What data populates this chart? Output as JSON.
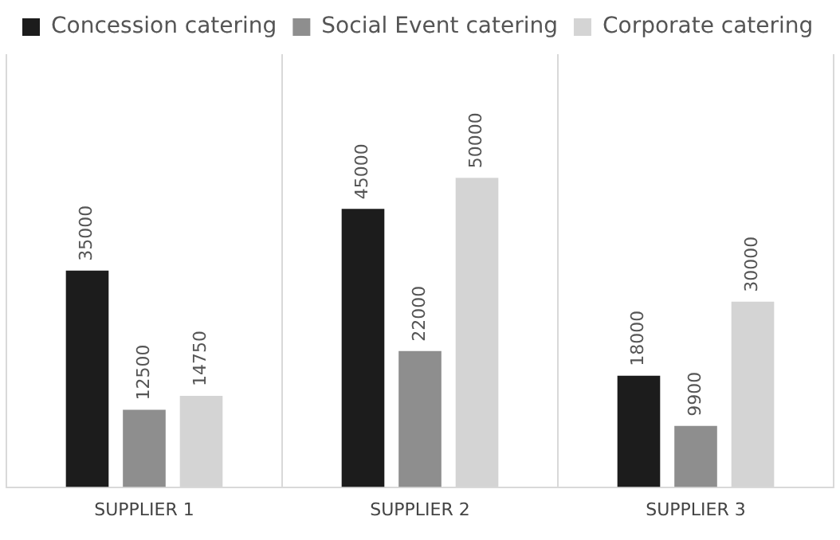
{
  "chart_data": {
    "type": "bar",
    "categories": [
      "SUPPLIER 1",
      "SUPPLIER 2",
      "SUPPLIER 3"
    ],
    "series": [
      {
        "name": "Concession catering",
        "color": "#1c1c1c",
        "values": [
          35000,
          45000,
          18000
        ]
      },
      {
        "name": "Social Event catering",
        "color": "#8e8e8e",
        "values": [
          12500,
          22000,
          9900
        ]
      },
      {
        "name": "Corporate catering",
        "color": "#d4d4d4",
        "values": [
          14750,
          50000,
          30000
        ]
      }
    ],
    "data_labels": true,
    "grid": "x",
    "legend": "top left"
  }
}
